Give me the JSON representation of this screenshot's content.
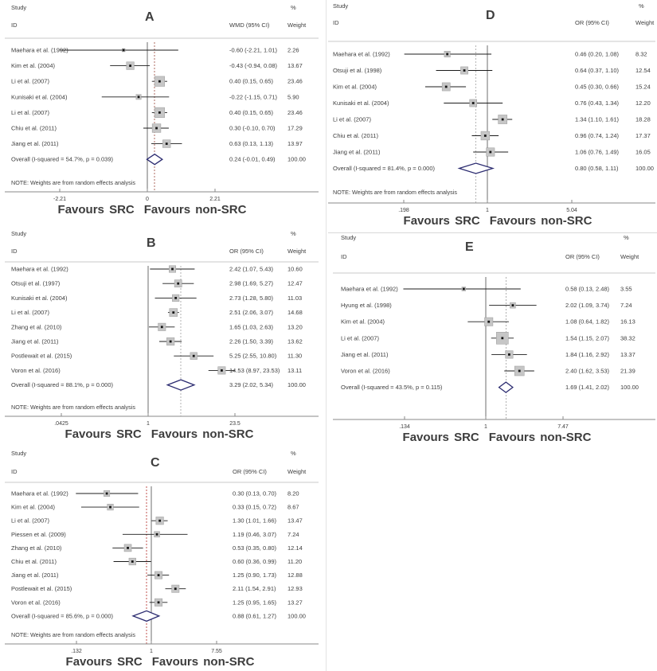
{
  "figure_note": "Forest plots, meta-analysis",
  "colors": {
    "diamond": "#2b2b70",
    "marker_fill": "#c6c6c6",
    "marker_stroke": "#9a9a9a",
    "marker_point": "#141414",
    "ci_line": "#1c1c1c",
    "null_line": "#6e6e6e",
    "axis": "#8a8a8a",
    "rule": "#c9c9c9",
    "text": "#3d3d3d"
  },
  "chart_data": [
    {
      "type": "forest",
      "panel": "A",
      "headers": {
        "study_top": "Study",
        "study_bottom": "ID",
        "pct": "%",
        "effect": "WMD (95% CI)",
        "weight": "Weight"
      },
      "scale": "linear",
      "null_value": 0,
      "dashed_color": "#ad6a5f",
      "ticks": [
        {
          "value": -2.21,
          "label": "-2.21"
        },
        {
          "value": 0,
          "label": "0"
        },
        {
          "value": 2.21,
          "label": "2.21"
        }
      ],
      "studies": [
        {
          "id": "Maehara et al. (1992)",
          "effect": -0.6,
          "lo": -2.21,
          "hi": 1.01,
          "label": "-0.60 (-2.21, 1.01)",
          "weight": 2.26,
          "weight_label": "2.26"
        },
        {
          "id": "Kim et al. (2004)",
          "effect": -0.43,
          "lo": -0.94,
          "hi": 0.08,
          "label": "-0.43 (-0.94, 0.08)",
          "weight": 13.67,
          "weight_label": "13.67"
        },
        {
          "id": "Li et al. (2007)",
          "effect": 0.4,
          "lo": 0.15,
          "hi": 0.65,
          "label": "0.40 (0.15, 0.65)",
          "weight": 23.46,
          "weight_label": "23.46"
        },
        {
          "id": "Kunisaki et al. (2004)",
          "effect": -0.22,
          "lo": -1.15,
          "hi": 0.71,
          "label": "-0.22 (-1.15, 0.71)",
          "weight": 5.9,
          "weight_label": "5.90"
        },
        {
          "id": "Li et al. (2007)",
          "effect": 0.4,
          "lo": 0.15,
          "hi": 0.65,
          "label": "0.40 (0.15, 0.65)",
          "weight": 23.46,
          "weight_label": "23.46"
        },
        {
          "id": "Chiu et al. (2011)",
          "effect": 0.3,
          "lo": -0.1,
          "hi": 0.7,
          "label": "0.30 (-0.10, 0.70)",
          "weight": 17.29,
          "weight_label": "17.29"
        },
        {
          "id": "Jiang et al. (2011)",
          "effect": 0.63,
          "lo": 0.13,
          "hi": 1.13,
          "label": "0.63 (0.13, 1.13)",
          "weight": 13.97,
          "weight_label": "13.97"
        }
      ],
      "overall": {
        "id": "Overall  (I-squared = 54.7%, p = 0.039)",
        "effect": 0.24,
        "lo": -0.01,
        "hi": 0.49,
        "label": "0.24 (-0.01, 0.49)",
        "weight_label": "100.00"
      },
      "note": "NOTE: Weights are from random effects analysis",
      "favours_left": "Favours  SRC",
      "favours_right": "Favours  non-SRC"
    },
    {
      "type": "forest",
      "panel": "B",
      "headers": {
        "study_top": "Study",
        "study_bottom": "ID",
        "pct": "%",
        "effect": "OR (95% CI)",
        "weight": "Weight"
      },
      "scale": "log",
      "null_value": 1,
      "dashed_color": "#b0b0b0",
      "ticks": [
        {
          "value": 0.0425,
          "label": ".0425"
        },
        {
          "value": 1,
          "label": "1"
        },
        {
          "value": 23.5,
          "label": "23.5"
        }
      ],
      "studies": [
        {
          "id": "Maehara et al. (1992)",
          "effect": 2.42,
          "lo": 1.07,
          "hi": 5.43,
          "label": "2.42 (1.07, 5.43)",
          "weight": 10.6,
          "weight_label": "10.60"
        },
        {
          "id": "Otsuji et al. (1997)",
          "effect": 2.98,
          "lo": 1.69,
          "hi": 5.27,
          "label": "2.98 (1.69, 5.27)",
          "weight": 12.47,
          "weight_label": "12.47"
        },
        {
          "id": "Kunisaki et al. (2004)",
          "effect": 2.73,
          "lo": 1.28,
          "hi": 5.8,
          "label": "2.73 (1.28, 5.80)",
          "weight": 11.03,
          "weight_label": "11.03"
        },
        {
          "id": "Li et al. (2007)",
          "effect": 2.51,
          "lo": 2.06,
          "hi": 3.07,
          "label": "2.51 (2.06, 3.07)",
          "weight": 14.68,
          "weight_label": "14.68"
        },
        {
          "id": "Zhang et al. (2010)",
          "effect": 1.65,
          "lo": 1.03,
          "hi": 2.63,
          "label": "1.65 (1.03, 2.63)",
          "weight": 13.2,
          "weight_label": "13.20"
        },
        {
          "id": "Jiang et al. (2011)",
          "effect": 2.26,
          "lo": 1.5,
          "hi": 3.39,
          "label": "2.26 (1.50, 3.39)",
          "weight": 13.62,
          "weight_label": "13.62"
        },
        {
          "id": "Postlewait et al. (2015)",
          "effect": 5.25,
          "lo": 2.55,
          "hi": 10.8,
          "label": "5.25 (2.55, 10.80)",
          "weight": 11.3,
          "weight_label": "11.30"
        },
        {
          "id": "Voron et al. (2016)",
          "effect": 14.53,
          "lo": 8.97,
          "hi": 23.53,
          "label": "14.53 (8.97, 23.53)",
          "weight": 13.11,
          "weight_label": "13.11"
        }
      ],
      "overall": {
        "id": "Overall  (I-squared = 88.1%, p = 0.000)",
        "effect": 3.29,
        "lo": 2.02,
        "hi": 5.34,
        "label": "3.29 (2.02, 5.34)",
        "weight_label": "100.00"
      },
      "note": "NOTE: Weights are from random effects analysis",
      "favours_left": "Favours  SRC",
      "favours_right": "Favours  non-SRC"
    },
    {
      "type": "forest",
      "panel": "C",
      "headers": {
        "study_top": "Study",
        "study_bottom": "ID",
        "pct": "%",
        "effect": "OR (95% CI)",
        "weight": "Weight"
      },
      "scale": "log",
      "null_value": 1,
      "dashed_color": "#c0504d",
      "ticks": [
        {
          "value": 0.132,
          "label": ".132"
        },
        {
          "value": 1,
          "label": "1"
        },
        {
          "value": 7.55,
          "label": "7.55"
        }
      ],
      "studies": [
        {
          "id": "Maehara et al. (1992)",
          "effect": 0.3,
          "lo": 0.13,
          "hi": 0.7,
          "label": "0.30 (0.13, 0.70)",
          "weight": 8.2,
          "weight_label": "8.20"
        },
        {
          "id": "Kim et al. (2004)",
          "effect": 0.33,
          "lo": 0.15,
          "hi": 0.72,
          "label": "0.33 (0.15, 0.72)",
          "weight": 8.67,
          "weight_label": "8.67"
        },
        {
          "id": "Li et al. (2007)",
          "effect": 1.3,
          "lo": 1.01,
          "hi": 1.66,
          "label": "1.30 (1.01, 1.66)",
          "weight": 13.47,
          "weight_label": "13.47"
        },
        {
          "id": "Piessen et al. (2009)",
          "effect": 1.19,
          "lo": 0.46,
          "hi": 3.07,
          "label": "1.19 (0.46, 3.07)",
          "weight": 7.24,
          "weight_label": "7.24"
        },
        {
          "id": "Zhang et al. (2010)",
          "effect": 0.53,
          "lo": 0.35,
          "hi": 0.8,
          "label": "0.53 (0.35, 0.80)",
          "weight": 12.14,
          "weight_label": "12.14"
        },
        {
          "id": "Chiu et al. (2011)",
          "effect": 0.6,
          "lo": 0.36,
          "hi": 0.99,
          "label": "0.60 (0.36, 0.99)",
          "weight": 11.2,
          "weight_label": "11.20"
        },
        {
          "id": "Jiang et al. (2011)",
          "effect": 1.25,
          "lo": 0.9,
          "hi": 1.73,
          "label": "1.25 (0.90, 1.73)",
          "weight": 12.88,
          "weight_label": "12.88"
        },
        {
          "id": "Postlewait et al. (2015)",
          "effect": 2.11,
          "lo": 1.54,
          "hi": 2.91,
          "label": "2.11 (1.54, 2.91)",
          "weight": 12.93,
          "weight_label": "12.93"
        },
        {
          "id": "Voron et al. (2016)",
          "effect": 1.25,
          "lo": 0.95,
          "hi": 1.65,
          "label": "1.25 (0.95, 1.65)",
          "weight": 13.27,
          "weight_label": "13.27"
        }
      ],
      "overall": {
        "id": "Overall  (I-squared = 85.6%, p = 0.000)",
        "effect": 0.88,
        "lo": 0.61,
        "hi": 1.27,
        "label": "0.88 (0.61, 1.27)",
        "weight_label": "100.00"
      },
      "note": "NOTE: Weights are from random effects analysis",
      "favours_left": "Favours  SRC",
      "favours_right": "Favours  non-SRC"
    },
    {
      "type": "forest",
      "panel": "D",
      "headers": {
        "study_top": "Study",
        "study_bottom": "ID",
        "pct": "%",
        "effect": "OR (95% CI)",
        "weight": "Weight"
      },
      "scale": "log",
      "null_value": 1,
      "dashed_color": "#b5b5b5",
      "ticks": [
        {
          "value": 0.198,
          "label": ".198"
        },
        {
          "value": 1,
          "label": "1"
        },
        {
          "value": 5.04,
          "label": "5.04"
        }
      ],
      "studies": [
        {
          "id": "Maehara et al. (1992)",
          "effect": 0.46,
          "lo": 0.2,
          "hi": 1.08,
          "label": "0.46 (0.20, 1.08)",
          "weight": 8.32,
          "weight_label": "8.32"
        },
        {
          "id": "Otsuji et al. (1998)",
          "effect": 0.64,
          "lo": 0.37,
          "hi": 1.1,
          "label": "0.64 (0.37, 1.10)",
          "weight": 12.54,
          "weight_label": "12.54"
        },
        {
          "id": "Kim et al. (2004)",
          "effect": 0.45,
          "lo": 0.3,
          "hi": 0.66,
          "label": "0.45 (0.30, 0.66)",
          "weight": 15.24,
          "weight_label": "15.24"
        },
        {
          "id": "Kunisaki et al. (2004)",
          "effect": 0.76,
          "lo": 0.43,
          "hi": 1.34,
          "label": "0.76 (0.43, 1.34)",
          "weight": 12.2,
          "weight_label": "12.20"
        },
        {
          "id": "Li et al. (2007)",
          "effect": 1.34,
          "lo": 1.1,
          "hi": 1.61,
          "label": "1.34 (1.10, 1.61)",
          "weight": 18.28,
          "weight_label": "18.28"
        },
        {
          "id": "Chiu et al. (2011)",
          "effect": 0.96,
          "lo": 0.74,
          "hi": 1.24,
          "label": "0.96 (0.74, 1.24)",
          "weight": 17.37,
          "weight_label": "17.37"
        },
        {
          "id": "Jiang et al. (2011)",
          "effect": 1.06,
          "lo": 0.76,
          "hi": 1.49,
          "label": "1.06 (0.76, 1.49)",
          "weight": 16.05,
          "weight_label": "16.05"
        }
      ],
      "overall": {
        "id": "Overall  (I-squared = 81.4%, p = 0.000)",
        "effect": 0.8,
        "lo": 0.58,
        "hi": 1.11,
        "label": "0.80 (0.58, 1.11)",
        "weight_label": "100.00"
      },
      "note": "NOTE: Weights are from random effects analysis",
      "favours_left": "Favours  SRC",
      "favours_right": "Favours  non-SRC"
    },
    {
      "type": "forest",
      "panel": "E",
      "headers": {
        "study_top": "Study",
        "study_bottom": "ID",
        "pct": "%",
        "effect": "OR (95% CI)",
        "weight": "Weight"
      },
      "scale": "log",
      "null_value": 1,
      "dashed_color": "#b0b0b0",
      "ticks": [
        {
          "value": 0.134,
          "label": ".134"
        },
        {
          "value": 1,
          "label": "1"
        },
        {
          "value": 7.47,
          "label": "7.47"
        }
      ],
      "studies": [
        {
          "id": "Maehara et al. (1992)",
          "effect": 0.58,
          "lo": 0.13,
          "hi": 2.48,
          "label": "0.58 (0.13, 2.48)",
          "weight": 3.55,
          "weight_label": "3.55"
        },
        {
          "id": "Hyung et al. (1998)",
          "effect": 2.02,
          "lo": 1.09,
          "hi": 3.74,
          "label": "2.02 (1.09, 3.74)",
          "weight": 7.24,
          "weight_label": "7.24"
        },
        {
          "id": "Kim et al. (2004)",
          "effect": 1.08,
          "lo": 0.64,
          "hi": 1.82,
          "label": "1.08 (0.64, 1.82)",
          "weight": 16.13,
          "weight_label": "16.13"
        },
        {
          "id": "Li et al. (2007)",
          "effect": 1.54,
          "lo": 1.15,
          "hi": 2.07,
          "label": "1.54 (1.15, 2.07)",
          "weight": 38.32,
          "weight_label": "38.32"
        },
        {
          "id": "Jiang et al. (2011)",
          "effect": 1.84,
          "lo": 1.16,
          "hi": 2.92,
          "label": "1.84 (1.16, 2.92)",
          "weight": 13.37,
          "weight_label": "13.37"
        },
        {
          "id": "Voron et al. (2016)",
          "effect": 2.4,
          "lo": 1.62,
          "hi": 3.53,
          "label": "2.40 (1.62, 3.53)",
          "weight": 21.39,
          "weight_label": "21.39"
        }
      ],
      "overall": {
        "id": "Overall  (I-squared = 43.5%, p = 0.115)",
        "effect": 1.69,
        "lo": 1.41,
        "hi": 2.02,
        "label": "1.69 (1.41, 2.02)",
        "weight_label": "100.00"
      },
      "note": null,
      "favours_left": "Favours  SRC",
      "favours_right": "Favours  non-SRC"
    }
  ]
}
